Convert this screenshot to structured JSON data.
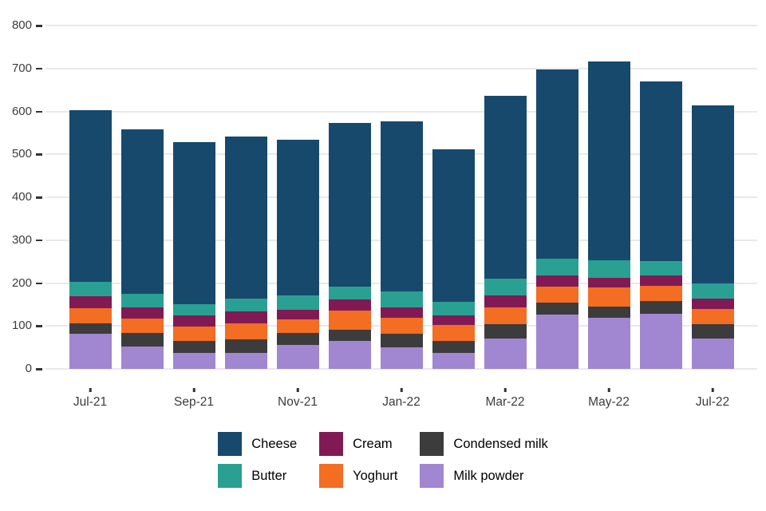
{
  "chart_data": {
    "type": "bar",
    "stacked": true,
    "title": "",
    "xlabel": "",
    "ylabel": "",
    "ylim": [
      0,
      800
    ],
    "yticks": [
      0,
      100,
      200,
      300,
      400,
      500,
      600,
      700,
      800
    ],
    "grid": true,
    "legend_position": "bottom",
    "categories": [
      "Jul-21",
      "Aug-21",
      "Sep-21",
      "Oct-21",
      "Nov-21",
      "Dec-21",
      "Jan-22",
      "Feb-22",
      "Mar-22",
      "Apr-22",
      "May-22",
      "Jun-22",
      "Jul-22"
    ],
    "x_tick_labels": [
      "Jul-21",
      "Sep-21",
      "Nov-21",
      "Jan-22",
      "Mar-22",
      "May-22",
      "Jul-22"
    ],
    "series": [
      {
        "name": "Milk powder",
        "color": "#a186d2",
        "values": [
          82,
          53,
          37,
          38,
          56,
          65,
          51,
          38,
          70,
          127,
          120,
          128,
          71
        ]
      },
      {
        "name": "Condensed milk",
        "color": "#3c3c3c",
        "values": [
          25,
          30,
          29,
          30,
          28,
          26,
          31,
          28,
          34,
          28,
          25,
          30,
          33
        ]
      },
      {
        "name": "Yoghurt",
        "color": "#f36d22",
        "values": [
          34,
          35,
          33,
          39,
          32,
          44,
          37,
          36,
          39,
          37,
          44,
          35,
          36
        ]
      },
      {
        "name": "Cream",
        "color": "#811a54",
        "values": [
          28,
          26,
          26,
          27,
          21,
          26,
          24,
          23,
          28,
          26,
          23,
          24,
          24
        ]
      },
      {
        "name": "Butter",
        "color": "#2aa093",
        "values": [
          33,
          31,
          26,
          29,
          35,
          31,
          37,
          32,
          39,
          39,
          42,
          34,
          36
        ]
      },
      {
        "name": "Cheese",
        "color": "#17496d",
        "values": [
          400,
          383,
          378,
          379,
          362,
          381,
          397,
          355,
          426,
          441,
          463,
          419,
          414
        ]
      }
    ],
    "totals": [
      602,
      558,
      529,
      542,
      534,
      573,
      577,
      512,
      636,
      698,
      717,
      670,
      614
    ],
    "legend_columns": [
      [
        "Cheese",
        "Butter"
      ],
      [
        "Cream",
        "Yoghurt"
      ],
      [
        "Condensed milk",
        "Milk powder"
      ]
    ],
    "colors": {
      "background": "#ffffff",
      "gridline": "#e9e9e9",
      "axis_tick": "#333333",
      "axis_text": "#3c3c3c",
      "legend_text": "#000000"
    }
  }
}
